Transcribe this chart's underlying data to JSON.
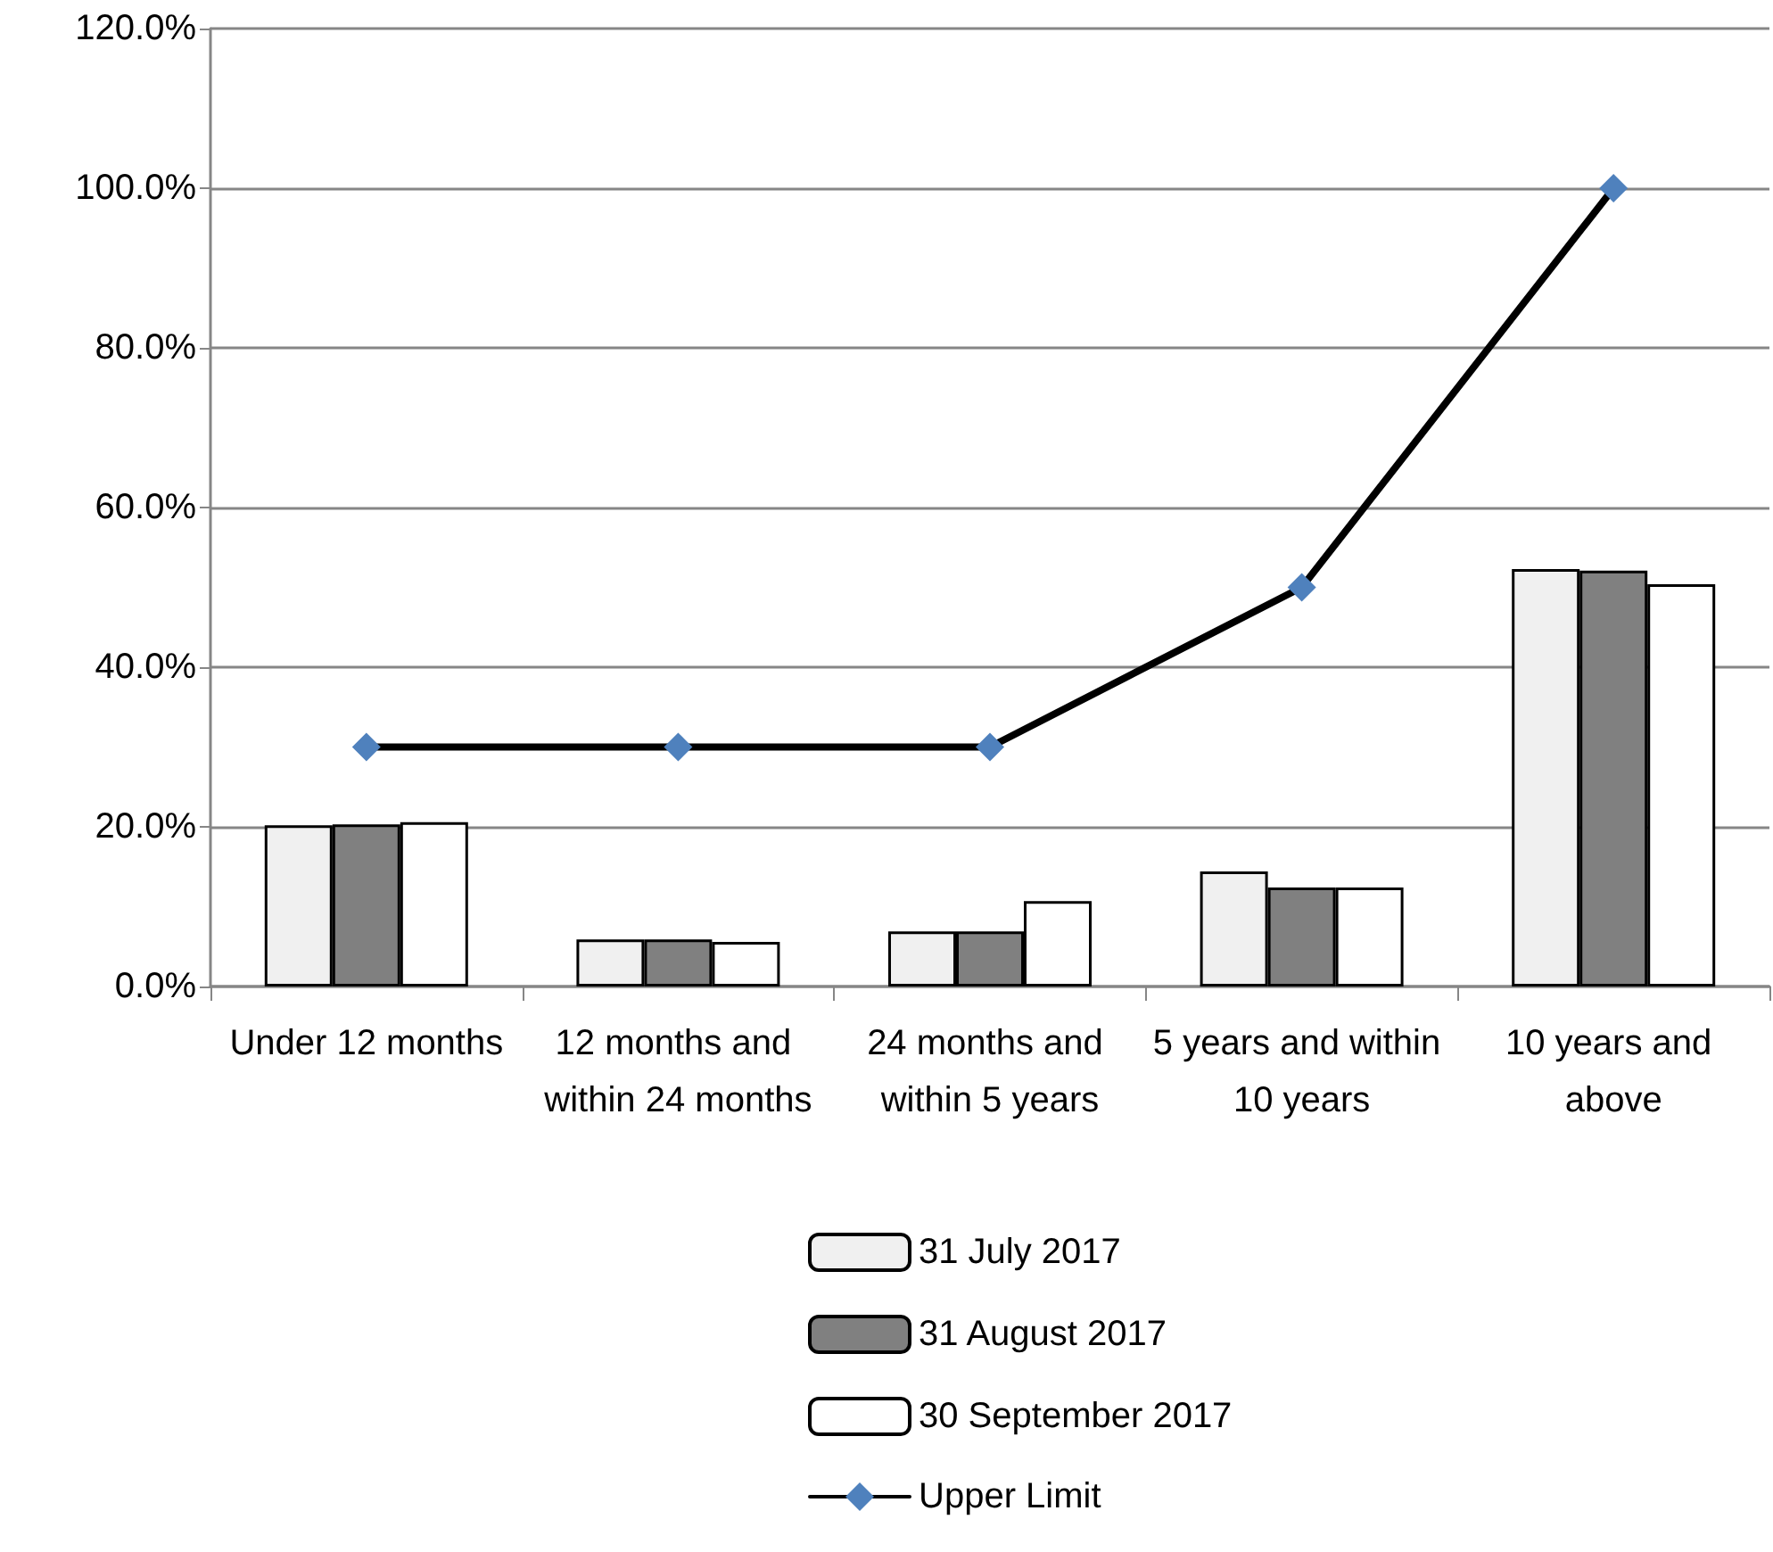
{
  "chart_data": {
    "type": "bar",
    "categories": [
      "Under 12 months",
      "12 months and within 24 months",
      "24 months and within 5 years",
      "5 years and within 10 years",
      "10 years and above"
    ],
    "series": [
      {
        "name": "31 July 2017",
        "color": "#f0f0f0",
        "values": [
          20.2,
          5.9,
          6.9,
          14.4,
          52.3
        ]
      },
      {
        "name": "31 August 2017",
        "color": "#808080",
        "values": [
          20.3,
          5.9,
          6.9,
          12.4,
          52.1
        ]
      },
      {
        "name": "30 September 2017",
        "color": "#ffffff",
        "values": [
          20.6,
          5.6,
          10.7,
          12.4,
          50.4
        ]
      },
      {
        "name": "Upper Limit",
        "type": "line",
        "color": "#000000",
        "colors": [
          "#4f81bd",
          "#4f81bd",
          "#4f81bd",
          "#4f81bd",
          "#4f81bd"
        ],
        "marker": "diamond",
        "values": [
          30,
          30,
          30,
          50,
          100
        ]
      }
    ],
    "ylim": [
      0,
      120
    ],
    "yticks": [
      {
        "value": 0,
        "label": "0.0%"
      },
      {
        "value": 20,
        "label": "20.0%"
      },
      {
        "value": 40,
        "label": "40.0%"
      },
      {
        "value": 60,
        "label": "60.0%"
      },
      {
        "value": 80,
        "label": "80.0%"
      },
      {
        "value": 100,
        "label": "100.0%"
      },
      {
        "value": 120,
        "label": "120.0%"
      }
    ],
    "grid": "y",
    "legend": "bottom"
  }
}
